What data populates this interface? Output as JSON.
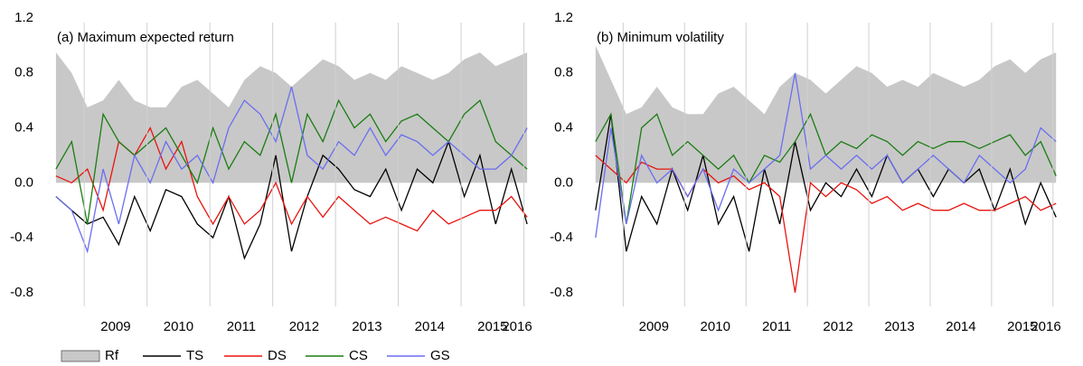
{
  "chart_data": [
    {
      "type": "line",
      "title": "(a) Maximum expected return",
      "x": [
        2008.55,
        2008.8,
        2009.05,
        2009.3,
        2009.55,
        2009.8,
        2010.05,
        2010.3,
        2010.55,
        2010.8,
        2011.05,
        2011.3,
        2011.55,
        2011.8,
        2012.05,
        2012.3,
        2012.55,
        2012.8,
        2013.05,
        2013.3,
        2013.55,
        2013.8,
        2014.05,
        2014.3,
        2014.55,
        2014.8,
        2015.05,
        2015.3,
        2015.55,
        2015.8,
        2016.05
      ],
      "xlim": [
        2008.45,
        2016.15
      ],
      "xticks": [
        2009,
        2010,
        2011,
        2012,
        2013,
        2014,
        2015,
        2016
      ],
      "ylim": [
        -0.9,
        1.2
      ],
      "yticks": [
        1.2,
        0.8,
        0.4,
        {
          "value": 0,
          "label": "0.0"
        },
        -0.4,
        -0.8
      ],
      "legend": "bottom",
      "series": [
        {
          "name": "Rf",
          "kind": "area",
          "color": "#c8c8c8",
          "values": [
            0.95,
            0.8,
            0.55,
            0.6,
            0.75,
            0.6,
            0.55,
            0.55,
            0.7,
            0.75,
            0.65,
            0.55,
            0.75,
            0.85,
            0.8,
            0.7,
            0.8,
            0.9,
            0.85,
            0.75,
            0.8,
            0.75,
            0.85,
            0.8,
            0.75,
            0.8,
            0.9,
            0.95,
            0.85,
            0.9,
            0.95
          ]
        },
        {
          "name": "TS",
          "kind": "line",
          "color": "#000000",
          "values": [
            -0.1,
            -0.2,
            -0.3,
            -0.25,
            -0.45,
            -0.1,
            -0.35,
            -0.05,
            -0.1,
            -0.3,
            -0.4,
            -0.1,
            -0.55,
            -0.3,
            0.2,
            -0.5,
            -0.1,
            0.2,
            0.1,
            -0.05,
            -0.1,
            0.1,
            -0.2,
            0.1,
            0.0,
            0.3,
            -0.1,
            0.2,
            -0.3,
            0.1,
            -0.3
          ]
        },
        {
          "name": "DS",
          "kind": "line",
          "color": "#e8140f",
          "values": [
            0.05,
            0.0,
            0.1,
            -0.2,
            0.3,
            0.2,
            0.4,
            0.1,
            0.3,
            -0.1,
            -0.3,
            -0.1,
            -0.3,
            -0.2,
            0.0,
            -0.3,
            -0.1,
            -0.25,
            -0.1,
            -0.2,
            -0.3,
            -0.25,
            -0.3,
            -0.35,
            -0.2,
            -0.3,
            -0.25,
            -0.2,
            -0.2,
            -0.1,
            -0.25
          ]
        },
        {
          "name": "CS",
          "kind": "line",
          "color": "#1a7d12",
          "values": [
            0.1,
            0.3,
            -0.3,
            0.5,
            0.3,
            0.2,
            0.3,
            0.4,
            0.2,
            0.0,
            0.4,
            0.1,
            0.3,
            0.2,
            0.5,
            0.0,
            0.5,
            0.3,
            0.6,
            0.4,
            0.5,
            0.3,
            0.45,
            0.5,
            0.4,
            0.3,
            0.5,
            0.6,
            0.3,
            0.2,
            0.1
          ]
        },
        {
          "name": "GS",
          "kind": "line",
          "color": "#6a6ef0",
          "values": [
            -0.1,
            -0.2,
            -0.5,
            0.1,
            -0.3,
            0.2,
            0.0,
            0.3,
            0.1,
            0.2,
            0.0,
            0.4,
            0.6,
            0.5,
            0.3,
            0.7,
            0.2,
            0.1,
            0.3,
            0.2,
            0.4,
            0.2,
            0.35,
            0.3,
            0.2,
            0.3,
            0.2,
            0.1,
            0.1,
            0.2,
            0.4
          ]
        }
      ]
    },
    {
      "type": "line",
      "title": "(b) Minimum volatility",
      "x": [
        2008.55,
        2008.8,
        2009.05,
        2009.3,
        2009.55,
        2009.8,
        2010.05,
        2010.3,
        2010.55,
        2010.8,
        2011.05,
        2011.3,
        2011.55,
        2011.8,
        2012.05,
        2012.3,
        2012.55,
        2012.8,
        2013.05,
        2013.3,
        2013.55,
        2013.8,
        2014.05,
        2014.3,
        2014.55,
        2014.8,
        2015.05,
        2015.3,
        2015.55,
        2015.8,
        2016.05
      ],
      "xlim": [
        2008.45,
        2016.15
      ],
      "xticks": [
        2009,
        2010,
        2011,
        2012,
        2013,
        2014,
        2015,
        2016
      ],
      "ylim": [
        -0.9,
        1.2
      ],
      "yticks": [
        1.2,
        0.8,
        0.4,
        {
          "value": 0,
          "label": "0.0"
        },
        -0.4,
        -0.8
      ],
      "series": [
        {
          "kind": "area",
          "color": "#c8c8c8",
          "values": [
            1.0,
            0.75,
            0.5,
            0.55,
            0.7,
            0.55,
            0.5,
            0.5,
            0.65,
            0.7,
            0.6,
            0.5,
            0.7,
            0.8,
            0.75,
            0.65,
            0.75,
            0.85,
            0.8,
            0.7,
            0.75,
            0.7,
            0.8,
            0.75,
            0.7,
            0.75,
            0.85,
            0.9,
            0.8,
            0.9,
            0.95
          ]
        },
        {
          "kind": "line",
          "color": "#000000",
          "values": [
            -0.2,
            0.5,
            -0.5,
            -0.1,
            -0.3,
            0.1,
            -0.2,
            0.2,
            -0.3,
            -0.1,
            -0.5,
            0.1,
            -0.3,
            0.3,
            -0.2,
            0.0,
            -0.1,
            0.1,
            -0.1,
            0.2,
            0.0,
            0.1,
            -0.1,
            0.1,
            0.0,
            0.1,
            -0.2,
            0.1,
            -0.3,
            0.0,
            -0.25
          ]
        },
        {
          "kind": "line",
          "color": "#e8140f",
          "values": [
            0.2,
            0.1,
            0.0,
            0.15,
            0.1,
            0.1,
            -0.1,
            0.1,
            0.0,
            0.05,
            -0.05,
            0.0,
            -0.1,
            -0.8,
            0.0,
            -0.1,
            0.0,
            -0.05,
            -0.15,
            -0.1,
            -0.2,
            -0.15,
            -0.2,
            -0.2,
            -0.15,
            -0.2,
            -0.2,
            -0.15,
            -0.1,
            -0.2,
            -0.15
          ]
        },
        {
          "kind": "line",
          "color": "#1a7d12",
          "values": [
            0.3,
            0.5,
            -0.3,
            0.4,
            0.5,
            0.2,
            0.3,
            0.2,
            0.1,
            0.2,
            0.0,
            0.2,
            0.15,
            0.3,
            0.5,
            0.2,
            0.3,
            0.25,
            0.35,
            0.3,
            0.2,
            0.3,
            0.25,
            0.3,
            0.3,
            0.25,
            0.3,
            0.35,
            0.2,
            0.3,
            0.05
          ]
        },
        {
          "kind": "line",
          "color": "#6a6ef0",
          "values": [
            -0.4,
            0.4,
            -0.3,
            0.2,
            0.0,
            0.1,
            -0.1,
            0.1,
            -0.2,
            0.1,
            0.0,
            0.1,
            0.2,
            0.8,
            0.1,
            0.2,
            0.1,
            0.2,
            0.1,
            0.2,
            0.0,
            0.1,
            0.2,
            0.1,
            0.0,
            0.2,
            0.1,
            0.0,
            0.1,
            0.4,
            0.3
          ]
        }
      ]
    }
  ]
}
